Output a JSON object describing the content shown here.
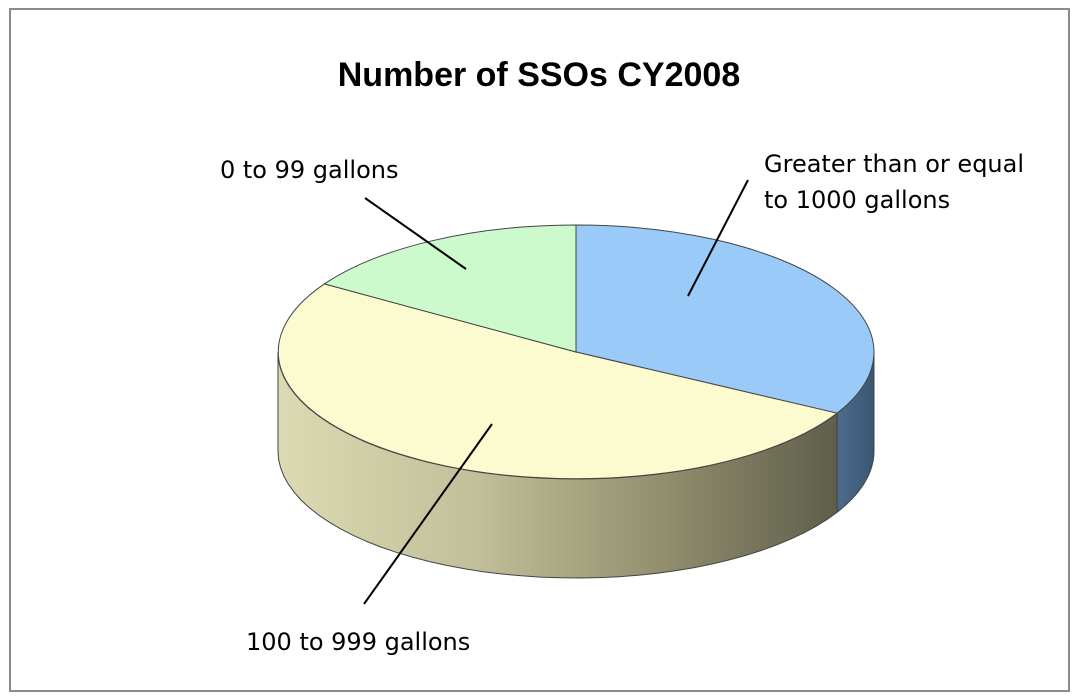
{
  "chart_data": {
    "type": "pie",
    "title": "Number of SSOs CY2008",
    "labels": [
      "Greater than or equal to 1000 gallons",
      "100 to 999 gallons",
      "0 to 99 gallons"
    ],
    "values": [
      33,
      51,
      16
    ],
    "colors": [
      "#99caf8",
      "#fbfbcf",
      "#ccfacc"
    ],
    "legend": "none",
    "style": "3d"
  }
}
